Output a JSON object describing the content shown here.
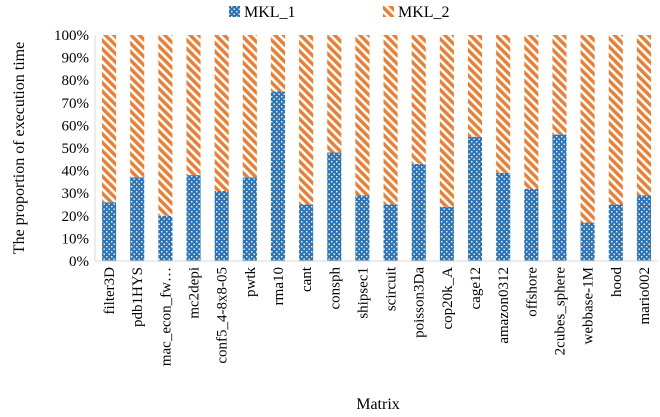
{
  "chart_data": {
    "type": "bar",
    "stacked": true,
    "percent_stacked": true,
    "categories": [
      "filter3D",
      "pdb1HYS",
      "mac_econ_fw…",
      "mc2depi",
      "conf5_4-8x8-05",
      "pwtk",
      "rma10",
      "cant",
      "consph",
      "shipsec1",
      "scircuit",
      "poisson3Da",
      "cop20k_A",
      "cage12",
      "amazon0312",
      "offshore",
      "2cubes_sphere",
      "webbase-1M",
      "hood",
      "mario002"
    ],
    "series": [
      {
        "name": "MKL_1",
        "color": "#2E75B6",
        "pattern": "dotted",
        "values": [
          26,
          37,
          20,
          38,
          31,
          37,
          75,
          25,
          48,
          29,
          25,
          43,
          24,
          55,
          39,
          32,
          56,
          17,
          25,
          29
        ]
      },
      {
        "name": "MKL_2",
        "color": "#ED7D31",
        "pattern": "diagonal-stripes",
        "values": [
          74,
          63,
          80,
          62,
          69,
          63,
          25,
          75,
          52,
          71,
          75,
          57,
          76,
          45,
          61,
          68,
          44,
          83,
          75,
          71
        ]
      }
    ],
    "xlabel": "Matrix",
    "ylabel": "The proportion of execution time",
    "ylim": [
      0,
      100
    ],
    "yticks": [
      "0%",
      "10%",
      "20%",
      "30%",
      "40%",
      "50%",
      "60%",
      "70%",
      "80%",
      "90%",
      "100%"
    ],
    "grid": false,
    "legend_position": "top"
  }
}
